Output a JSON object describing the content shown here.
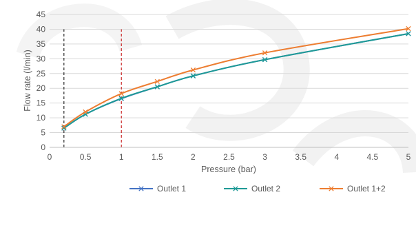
{
  "chart_data": {
    "type": "line",
    "xlabel": "Pressure (bar)",
    "ylabel": "Flow rate (l/min)",
    "xlim": [
      0,
      5
    ],
    "ylim": [
      0,
      45
    ],
    "x_ticks": [
      0,
      0.5,
      1,
      1.5,
      2,
      2.5,
      3,
      3.5,
      4,
      4.5,
      5
    ],
    "x_tick_labels": [
      "0",
      "0.5",
      "1",
      "1.5",
      "2",
      "2.5",
      "3",
      "3.5",
      "4",
      "4.5",
      "5"
    ],
    "y_ticks": [
      0,
      5,
      10,
      15,
      20,
      25,
      30,
      35,
      40,
      45
    ],
    "y_tick_labels": [
      "0",
      "5",
      "10",
      "15",
      "20",
      "25",
      "30",
      "35",
      "40",
      "45"
    ],
    "grid": "horizontal",
    "legend_position": "bottom",
    "series": [
      {
        "name": "Outlet 1",
        "color": "#4472C4",
        "marker": "x",
        "x": [
          0.2,
          0.5,
          1,
          1.5,
          2,
          3,
          5
        ],
        "y": [
          6.5,
          11.2,
          16.5,
          20.5,
          24.2,
          29.7,
          38.5
        ]
      },
      {
        "name": "Outlet 2",
        "color": "#1E9A96",
        "marker": "x",
        "x": [
          0.2,
          0.5,
          1,
          1.5,
          2,
          3,
          5
        ],
        "y": [
          6.5,
          11.2,
          16.6,
          20.5,
          24.2,
          29.7,
          38.5
        ]
      },
      {
        "name": "Outlet 1+2",
        "color": "#ED7D31",
        "marker": "x",
        "x": [
          0.2,
          0.5,
          1,
          1.5,
          2,
          3,
          5
        ],
        "y": [
          7.0,
          12.0,
          18.2,
          22.3,
          26.2,
          32.0,
          40.2
        ]
      }
    ],
    "reference_lines": [
      {
        "x": 0.2,
        "y_top": 40,
        "color": "#000000",
        "style": "dashed"
      },
      {
        "x": 1,
        "y_top": 40,
        "color": "#C00000",
        "style": "dashed"
      }
    ]
  }
}
